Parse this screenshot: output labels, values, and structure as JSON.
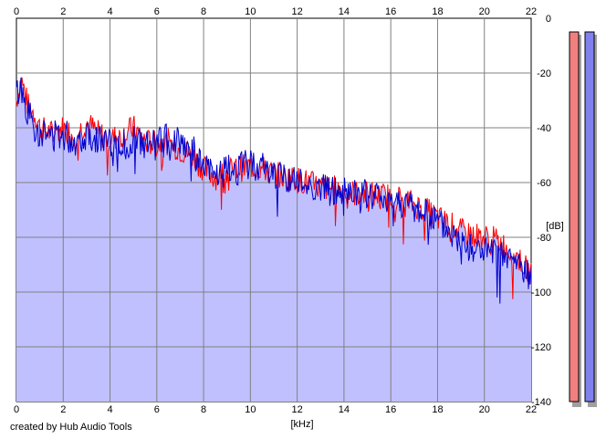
{
  "credit": "created by Hub Audio Tools",
  "chart_data": {
    "type": "area",
    "xlabel": "[kHz]",
    "ylabel": "[dB]",
    "xlim": [
      0,
      22
    ],
    "ylim": [
      -140,
      0
    ],
    "x_ticks": [
      0,
      2,
      4,
      6,
      8,
      10,
      12,
      14,
      16,
      18,
      20,
      22
    ],
    "y_ticks": [
      0,
      -20,
      -40,
      -60,
      -80,
      -100,
      -120,
      -140
    ],
    "grid": true,
    "background_fill": "#c0c0ff",
    "series": [
      {
        "color": "#ff0000",
        "points": [
          [
            0,
            -30
          ],
          [
            0.2,
            -22
          ],
          [
            0.5,
            -32
          ],
          [
            0.8,
            -35
          ],
          [
            1,
            -40
          ],
          [
            1.5,
            -42
          ],
          [
            2,
            -40
          ],
          [
            2.5,
            -43
          ],
          [
            3,
            -38
          ],
          [
            3.5,
            -42
          ],
          [
            4,
            -44
          ],
          [
            4.5,
            -43
          ],
          [
            5,
            -40
          ],
          [
            5.5,
            -45
          ],
          [
            6,
            -46
          ],
          [
            6.5,
            -45
          ],
          [
            7,
            -48
          ],
          [
            7.5,
            -50
          ],
          [
            8,
            -55
          ],
          [
            8.5,
            -58
          ],
          [
            9,
            -56
          ],
          [
            9.5,
            -55
          ],
          [
            10,
            -54
          ],
          [
            10.5,
            -55
          ],
          [
            11,
            -57
          ],
          [
            11.5,
            -58
          ],
          [
            12,
            -59
          ],
          [
            12.5,
            -60
          ],
          [
            13,
            -62
          ],
          [
            13.5,
            -62
          ],
          [
            14,
            -63
          ],
          [
            14.5,
            -64
          ],
          [
            15,
            -64
          ],
          [
            15.5,
            -65
          ],
          [
            16,
            -65
          ],
          [
            16.5,
            -66
          ],
          [
            17,
            -68
          ],
          [
            17.5,
            -70
          ],
          [
            18,
            -73
          ],
          [
            18.5,
            -75
          ],
          [
            19,
            -78
          ],
          [
            19.5,
            -79
          ],
          [
            20,
            -80
          ],
          [
            20.5,
            -81
          ],
          [
            21,
            -84
          ],
          [
            21.5,
            -88
          ],
          [
            22,
            -94
          ]
        ],
        "noise": 5,
        "seed": 7
      },
      {
        "color": "#0000cc",
        "points": [
          [
            0,
            -28
          ],
          [
            0.2,
            -25
          ],
          [
            0.5,
            -35
          ],
          [
            0.8,
            -38
          ],
          [
            1,
            -42
          ],
          [
            1.5,
            -43
          ],
          [
            2,
            -42
          ],
          [
            2.5,
            -45
          ],
          [
            3,
            -42
          ],
          [
            3.5,
            -44
          ],
          [
            4,
            -46
          ],
          [
            4.5,
            -47
          ],
          [
            5,
            -44
          ],
          [
            5.5,
            -47
          ],
          [
            6,
            -46
          ],
          [
            6.5,
            -44
          ],
          [
            7,
            -44
          ],
          [
            7.5,
            -48
          ],
          [
            8,
            -55
          ],
          [
            8.5,
            -57
          ],
          [
            9,
            -56
          ],
          [
            9.5,
            -55
          ],
          [
            10,
            -53
          ],
          [
            10.5,
            -54
          ],
          [
            11,
            -57
          ],
          [
            11.5,
            -58
          ],
          [
            12,
            -60
          ],
          [
            12.5,
            -61
          ],
          [
            13,
            -62
          ],
          [
            13.5,
            -63
          ],
          [
            14,
            -64
          ],
          [
            14.5,
            -64
          ],
          [
            15,
            -65
          ],
          [
            15.5,
            -65
          ],
          [
            16,
            -66
          ],
          [
            16.5,
            -67
          ],
          [
            17,
            -70
          ],
          [
            17.5,
            -71
          ],
          [
            18,
            -75
          ],
          [
            18.5,
            -78
          ],
          [
            19,
            -82
          ],
          [
            19.5,
            -84
          ],
          [
            20,
            -85
          ],
          [
            20.5,
            -87
          ],
          [
            21,
            -88
          ],
          [
            21.5,
            -90
          ],
          [
            22,
            -96
          ]
        ],
        "noise": 6,
        "seed": 13
      }
    ],
    "level_meters": [
      {
        "color": "#f08080",
        "top_db": -5
      },
      {
        "color": "#8080ee",
        "top_db": -5
      }
    ]
  }
}
